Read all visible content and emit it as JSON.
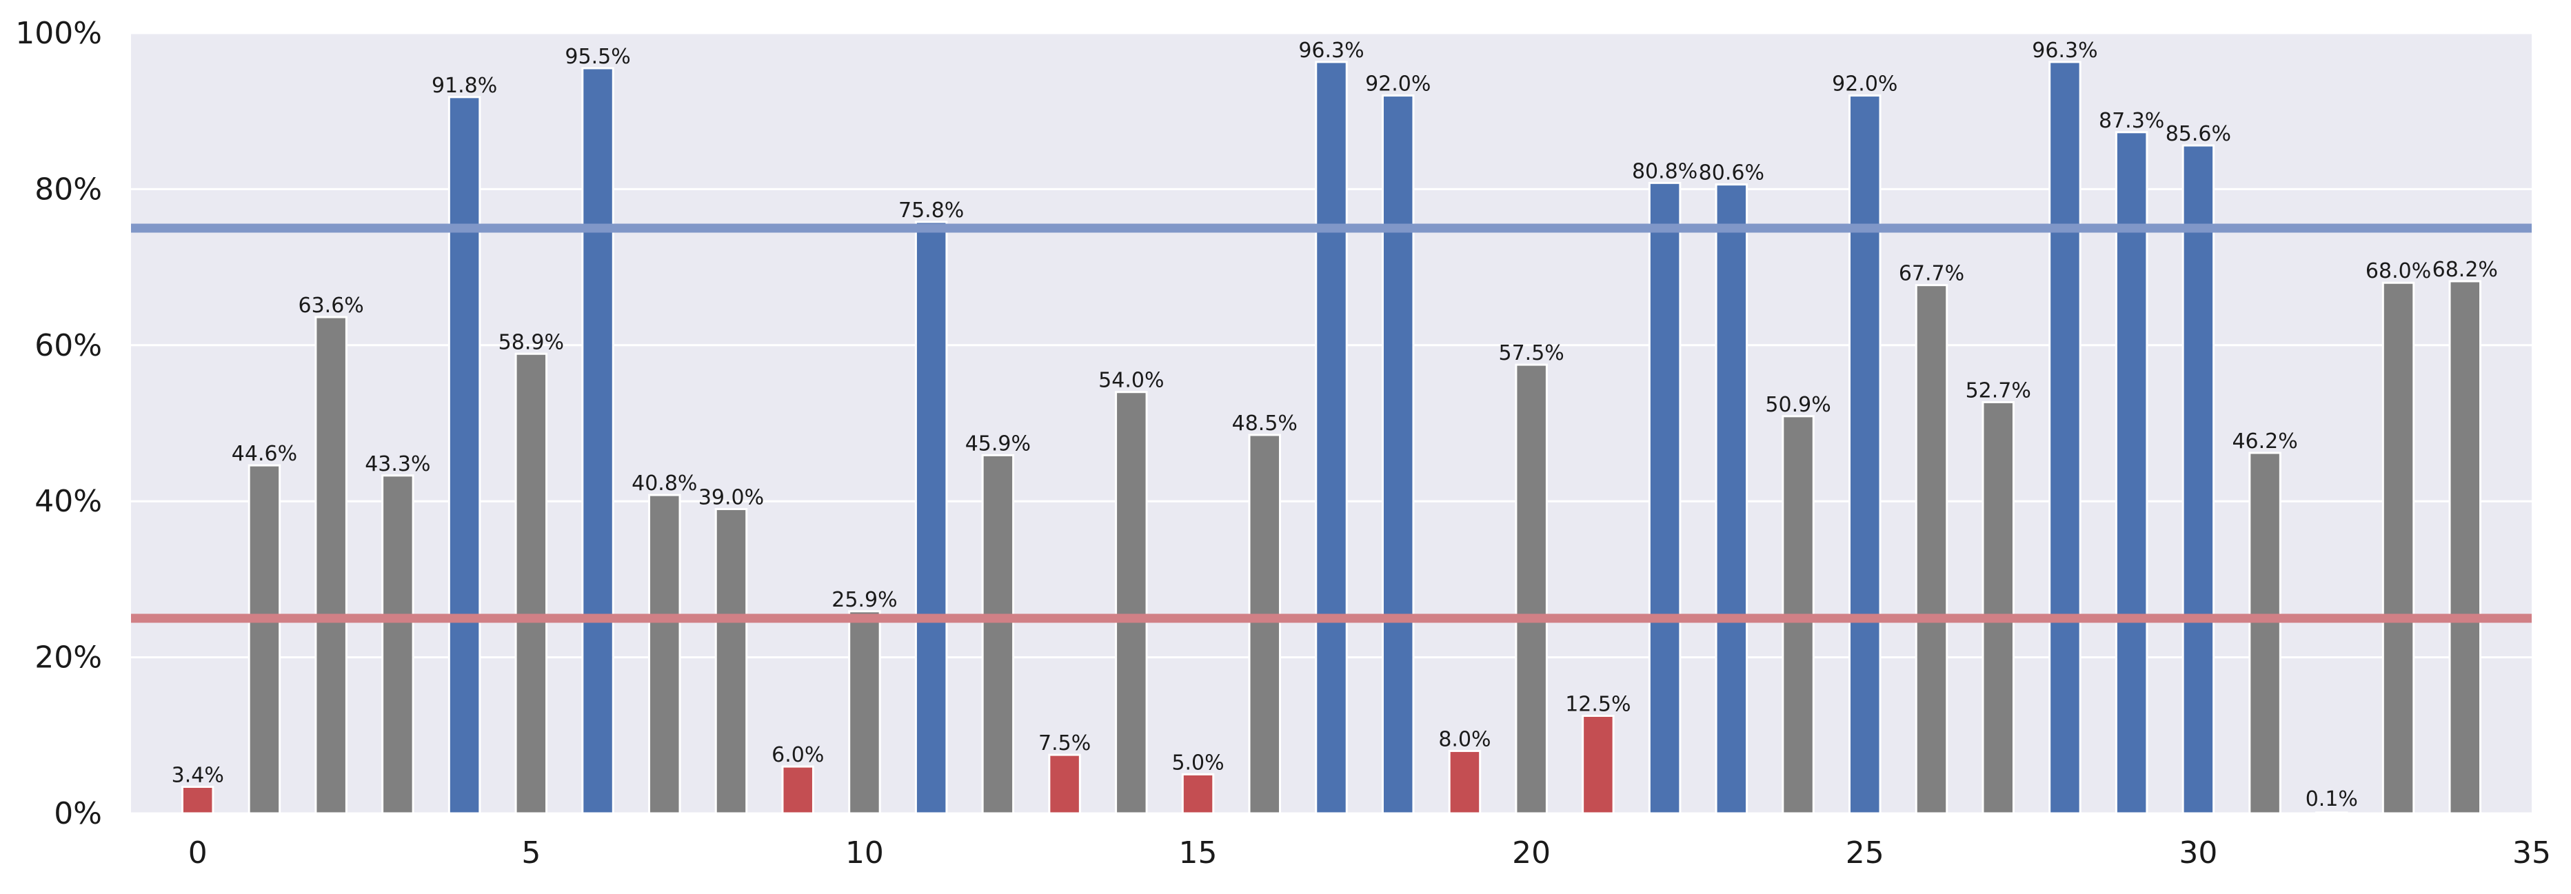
{
  "chart_data": {
    "type": "bar",
    "x": [
      0,
      1,
      2,
      3,
      4,
      5,
      6,
      7,
      8,
      9,
      10,
      11,
      12,
      13,
      14,
      15,
      16,
      17,
      18,
      19,
      20,
      21,
      22,
      23,
      24,
      25,
      26,
      27,
      28,
      29,
      30,
      31,
      32,
      33,
      34
    ],
    "values": [
      3.4,
      44.6,
      63.6,
      43.3,
      91.8,
      58.9,
      95.5,
      40.8,
      39.0,
      6.0,
      25.9,
      75.8,
      45.9,
      7.5,
      54.0,
      5.0,
      48.5,
      96.3,
      92.0,
      8.0,
      57.5,
      12.5,
      80.8,
      80.6,
      50.9,
      92.0,
      67.7,
      52.7,
      96.3,
      87.3,
      85.6,
      46.2,
      0.1,
      68.0,
      68.2
    ],
    "labels": [
      "3.4%",
      "44.6%",
      "63.6%",
      "43.3%",
      "91.8%",
      "58.9%",
      "95.5%",
      "40.8%",
      "39.0%",
      "6.0%",
      "25.9%",
      "75.8%",
      "45.9%",
      "7.5%",
      "54.0%",
      "5.0%",
      "48.5%",
      "96.3%",
      "92.0%",
      "8.0%",
      "57.5%",
      "12.5%",
      "80.8%",
      "80.6%",
      "50.9%",
      "92.0%",
      "67.7%",
      "52.7%",
      "96.3%",
      "87.3%",
      "85.6%",
      "46.2%",
      "0.1%",
      "68.0%",
      "68.2%"
    ],
    "thresholds": [
      {
        "value": 75,
        "color": "#8097c8"
      },
      {
        "value": 25,
        "color": "#d18086"
      }
    ],
    "colors": {
      "high": "#4c72b0",
      "mid": "#808080",
      "low": "#c44e52"
    },
    "ylim": [
      0,
      100
    ],
    "yticks": [
      0,
      20,
      40,
      60,
      80,
      100
    ],
    "ytick_labels": [
      "0%",
      "20%",
      "40%",
      "60%",
      "80%",
      "100%"
    ],
    "xlim": [
      -1,
      35
    ],
    "xticks": [
      0,
      5,
      10,
      15,
      20,
      25,
      30,
      35
    ],
    "xtick_labels": [
      "0",
      "5",
      "10",
      "15",
      "20",
      "25",
      "30",
      "35"
    ],
    "grid": true,
    "background": "#eaeaf2",
    "title": "",
    "xlabel": "",
    "ylabel": ""
  }
}
